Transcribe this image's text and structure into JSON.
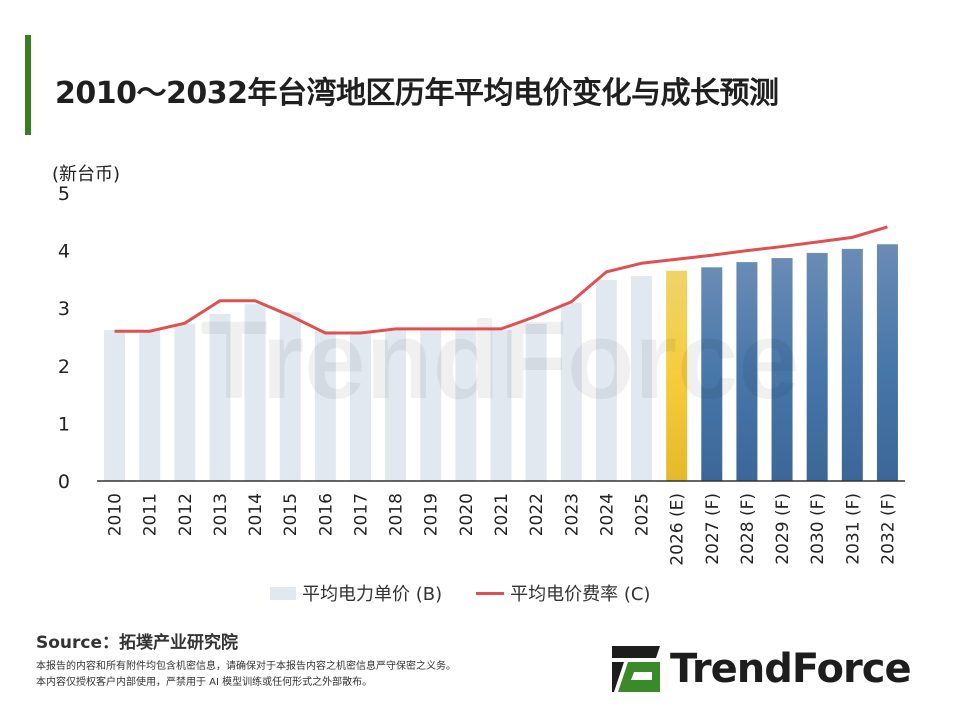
{
  "title": "2010～2032年台湾地区历年平均电价变化与成长预测",
  "chart_data": {
    "type": "bar",
    "title": "2010～2032年台湾地区历年平均电价变化与成长预测",
    "ylabel": "(新台币)",
    "ylim": [
      0,
      5
    ],
    "yticks": [
      "0",
      "1",
      "2",
      "3",
      "4",
      "5"
    ],
    "categories": [
      "2010",
      "2011",
      "2012",
      "2013",
      "2014",
      "2015",
      "2016",
      "2017",
      "2018",
      "2019",
      "2020",
      "2021",
      "2022",
      "2023",
      "2024",
      "2025",
      "2026 (E)",
      "2027 (F)",
      "2028 (F)",
      "2029 (F)",
      "2030 (F)",
      "2031 (F)",
      "2032 (F)"
    ],
    "series": [
      {
        "name": "平均电力单价 (B)",
        "type": "bar",
        "values": [
          2.62,
          2.62,
          2.73,
          2.9,
          3.07,
          2.93,
          2.6,
          2.6,
          2.62,
          2.62,
          2.62,
          2.62,
          2.73,
          3.1,
          3.49,
          3.56,
          3.65,
          3.71,
          3.8,
          3.87,
          3.96,
          4.03,
          4.11
        ]
      },
      {
        "name": "平均电价费率 (C)",
        "type": "line",
        "color": "#e05050",
        "values": [
          2.6,
          2.6,
          2.74,
          3.13,
          3.13,
          2.87,
          2.57,
          2.57,
          2.64,
          2.64,
          2.64,
          2.64,
          2.86,
          3.11,
          3.63,
          3.78,
          3.85,
          3.92,
          4.0,
          4.07,
          4.15,
          4.23,
          4.41
        ]
      }
    ],
    "bar_colors": {
      "historical": "#e1e8f0",
      "estimate": "#f0c93a",
      "forecast": "#4a78aa"
    },
    "legend": "bottom",
    "grid": false
  },
  "watermark": "TrendForce",
  "source": "Source：拓墣产业研究院",
  "disclaimer": [
    "本报告的内容和所有附件均包含机密信息，请确保对于本报告内容之机密信息严守保密之义务。",
    "本内容仅授权客户内部使用，严禁用于 AI 模型训练或任何形式之外部散布。"
  ],
  "logo": "TrendForce"
}
